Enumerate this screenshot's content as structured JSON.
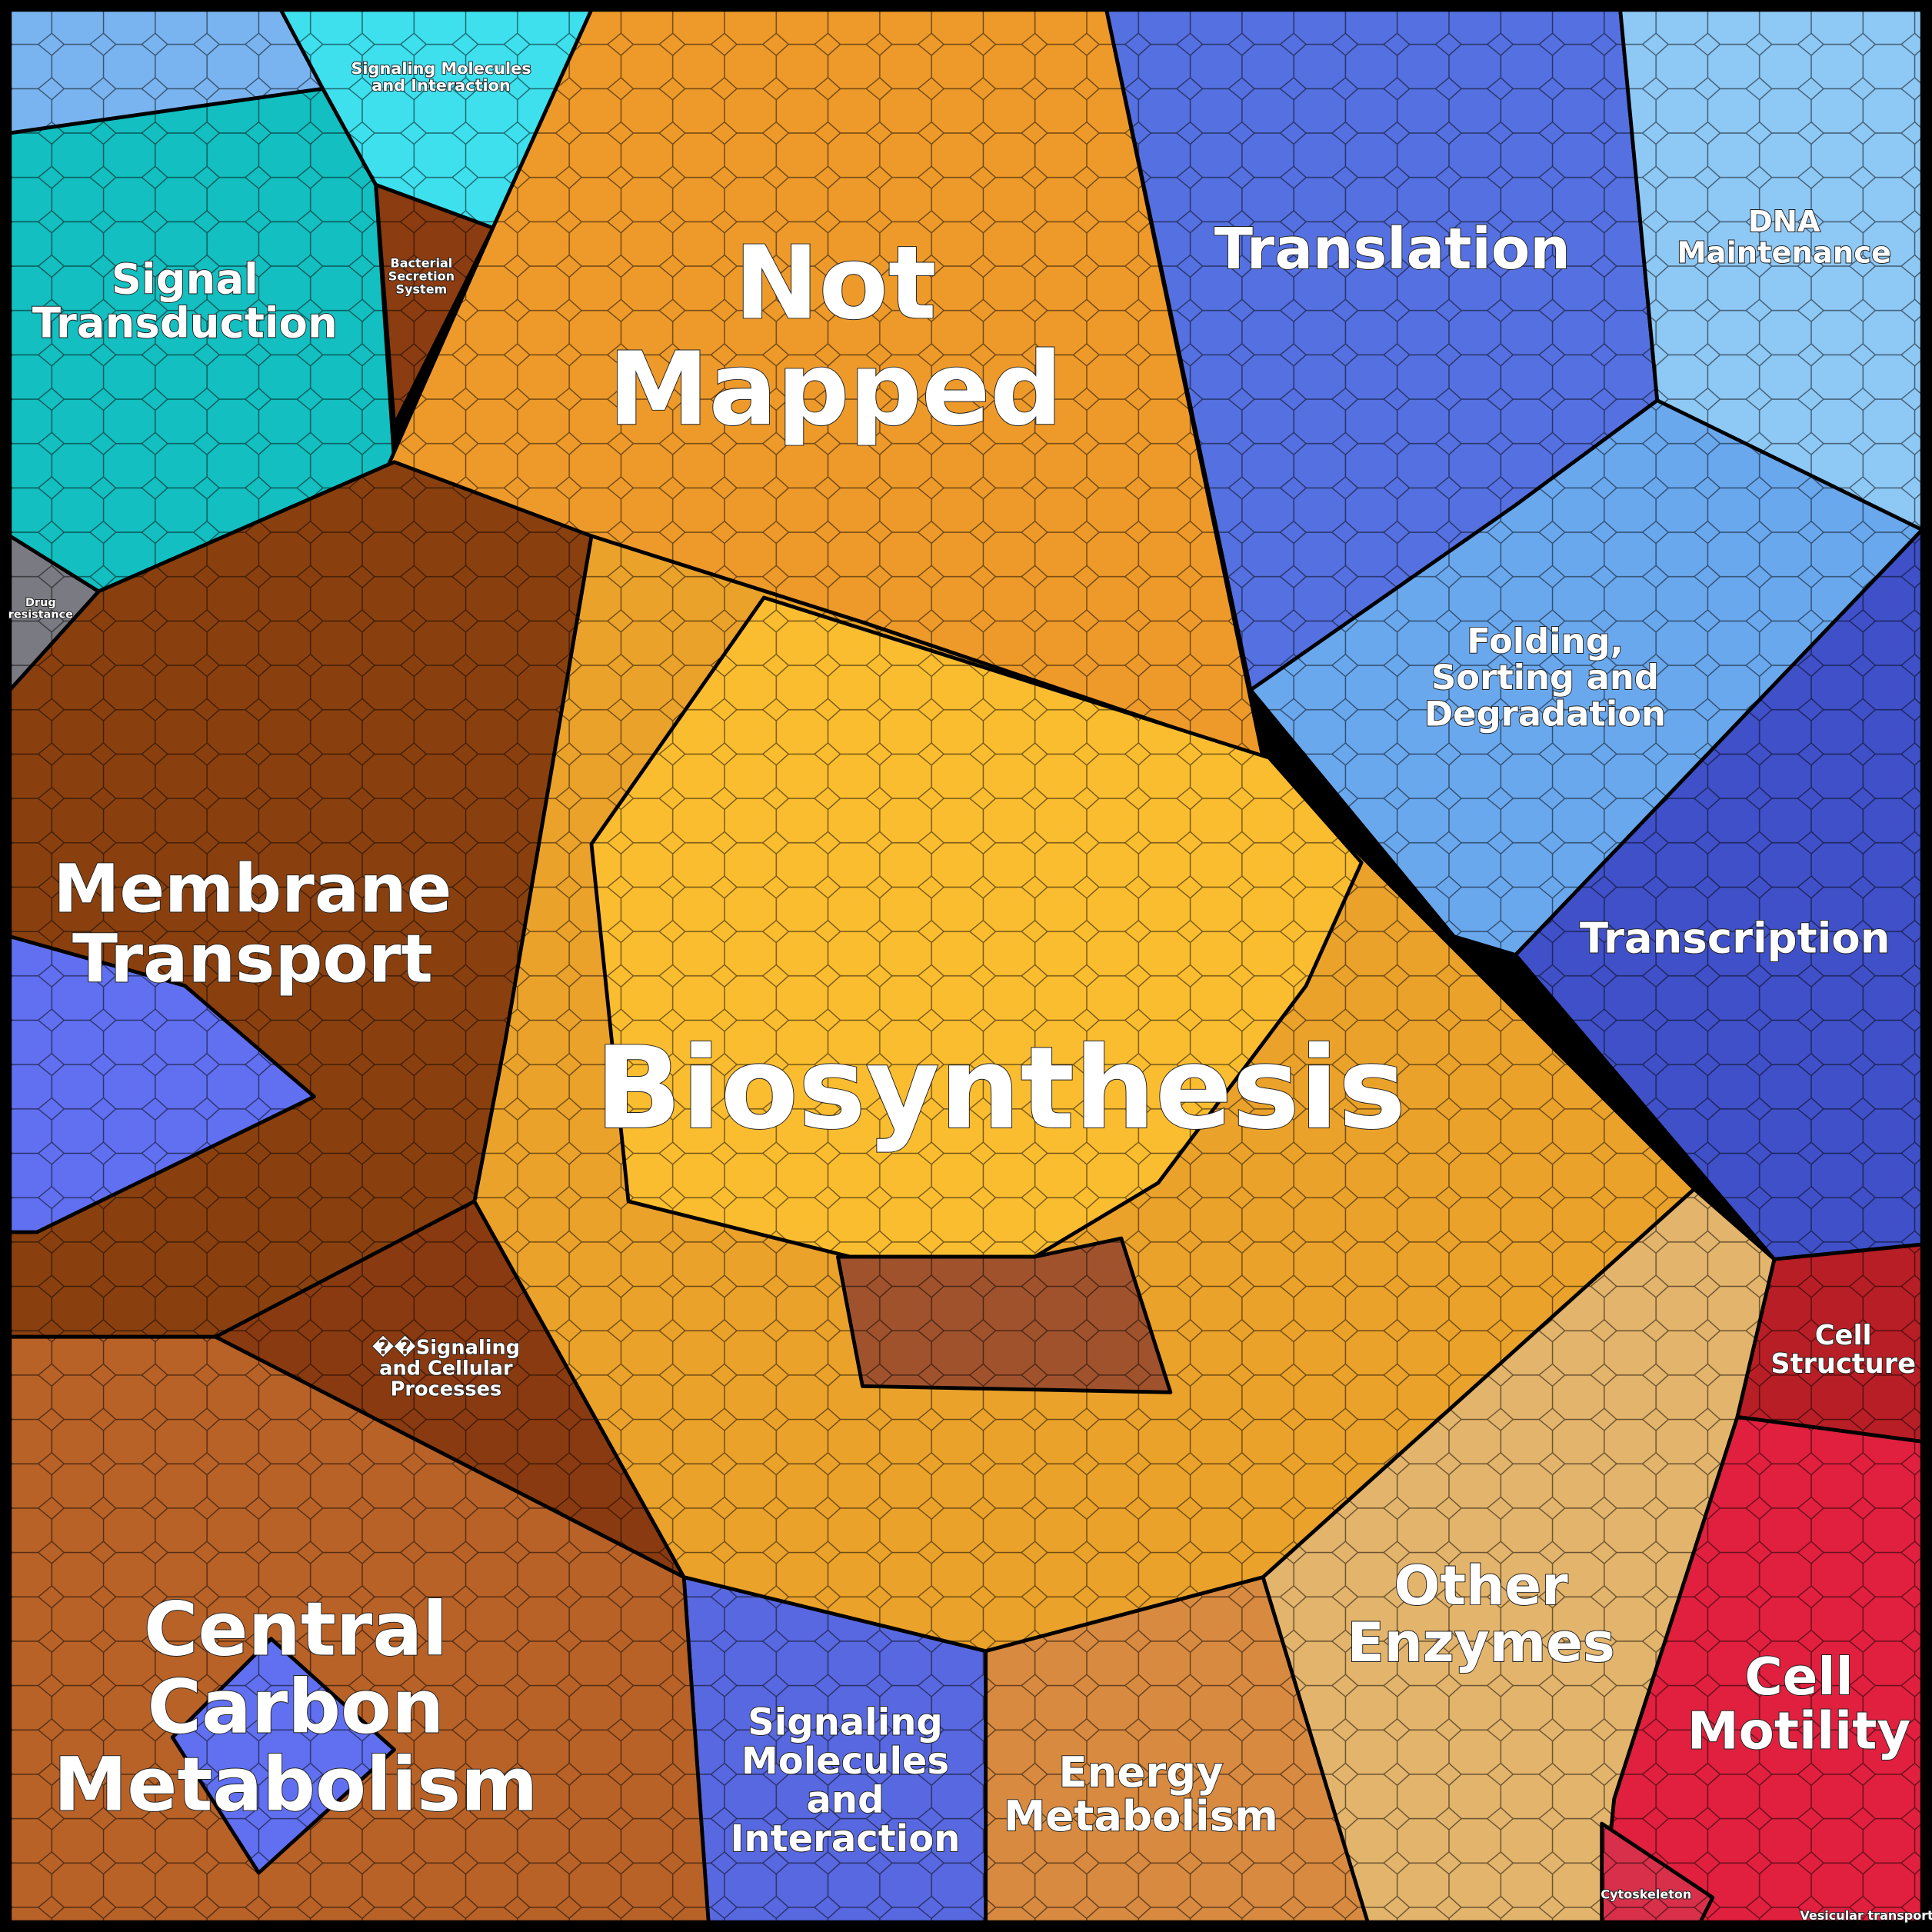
{
  "regions": [
    {
      "lines": [
        "Not",
        "Mapped"
      ]
    },
    {
      "lines": [
        "Biosynthesis"
      ]
    },
    {
      "lines": [
        "Translation"
      ]
    },
    {
      "lines": [
        "DNA",
        "Maintenance"
      ]
    },
    {
      "lines": [
        "Folding,",
        "Sorting and",
        "Degradation"
      ]
    },
    {
      "lines": [
        "Transcription"
      ]
    },
    {
      "lines": [
        "Membrane",
        "Transport"
      ]
    },
    {
      "lines": [
        "Signal",
        "Transduction"
      ]
    },
    {
      "lines": [
        "Signaling Molecules",
        "and Interaction"
      ]
    },
    {
      "lines": [
        "Bacterial",
        "Secretion",
        "System"
      ]
    },
    {
      "lines": [
        "Drug",
        "resistance"
      ]
    },
    {
      "lines": [
        "��Signaling",
        "and Cellular",
        "Processes"
      ]
    },
    {
      "lines": [
        "Central",
        "Carbon",
        "Metabolism"
      ]
    },
    {
      "lines": [
        "Signaling",
        "Molecules",
        "and",
        "Interaction"
      ]
    },
    {
      "lines": [
        "Energy",
        "Metabolism"
      ]
    },
    {
      "lines": [
        "Other",
        "Enzymes"
      ]
    },
    {
      "lines": [
        "Cell",
        "Structure"
      ]
    },
    {
      "lines": [
        "Cell",
        "Motility"
      ]
    },
    {
      "lines": [
        "Cytoskeleton"
      ]
    },
    {
      "lines": [
        "Vesicular transport"
      ]
    }
  ]
}
